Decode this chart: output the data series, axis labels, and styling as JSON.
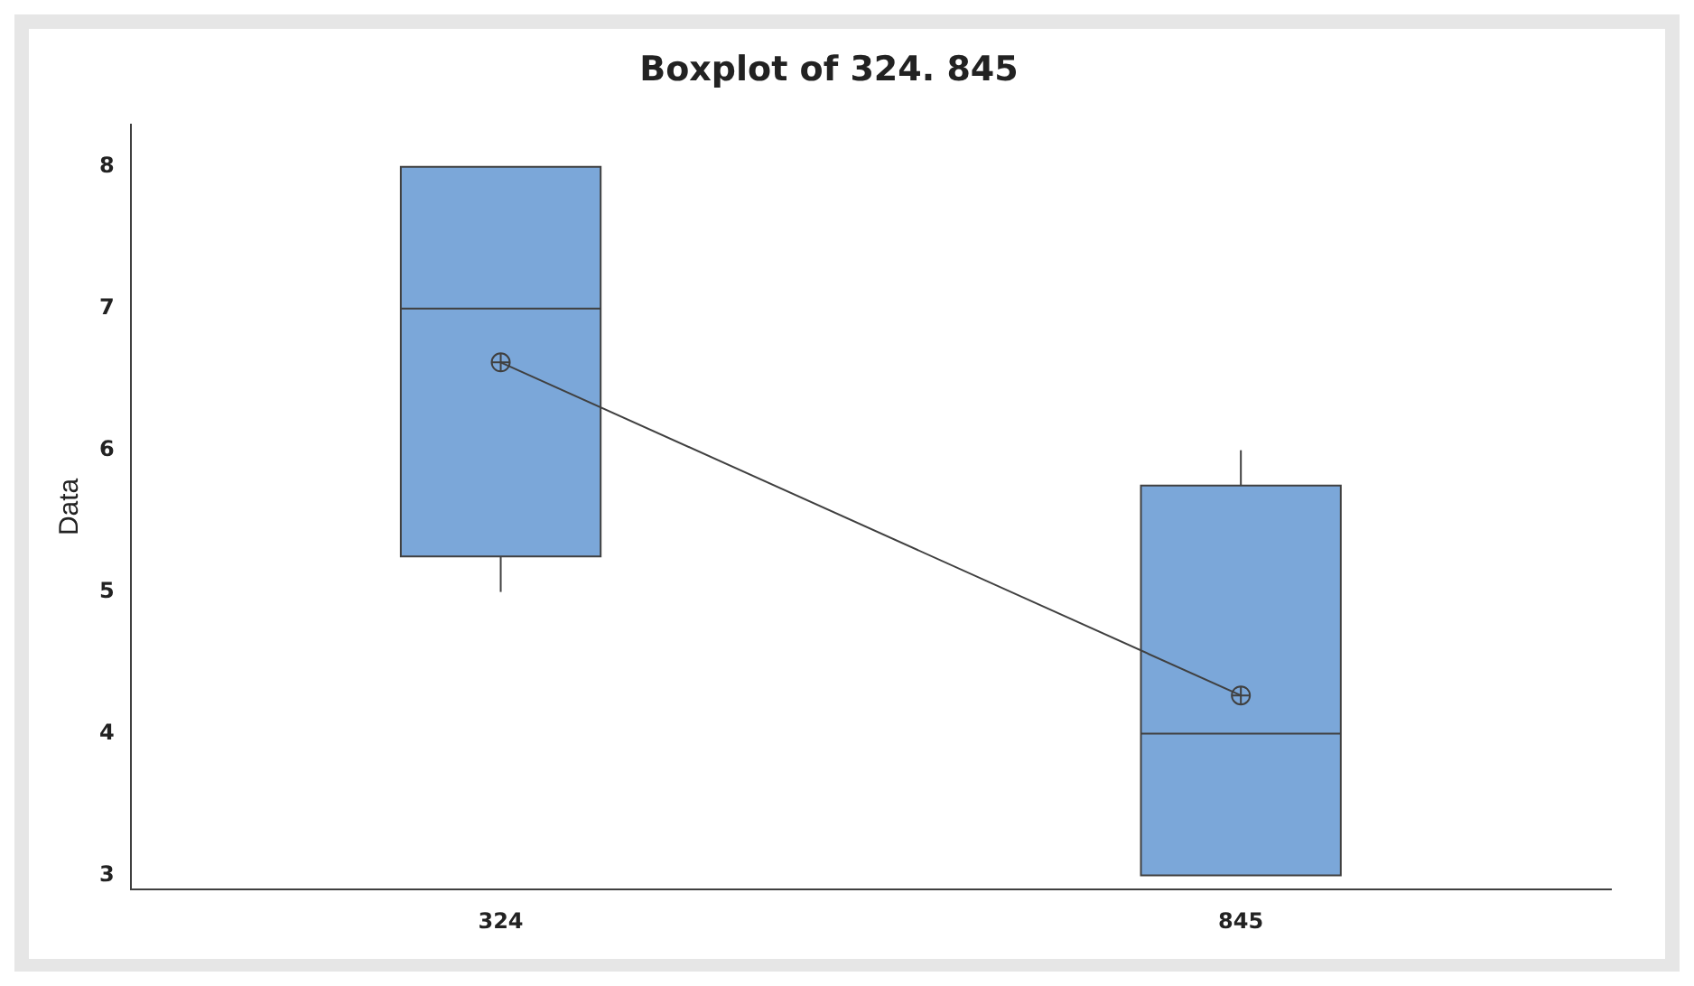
{
  "chart_data": {
    "type": "box",
    "title": "Boxplot of 324. 845",
    "ylabel": "Data",
    "categories": [
      "324",
      "845"
    ],
    "color": "#7ba7d9",
    "boxes": [
      {
        "low": 5,
        "q1": 5.25,
        "median": 7,
        "q3": 8,
        "high": 8,
        "mean": 6.62
      },
      {
        "low": 3,
        "q1": 3,
        "median": 4,
        "q3": 5.75,
        "high": 6,
        "mean": 4.27
      }
    ],
    "series": [
      {
        "type": "line",
        "color": "#404040",
        "values": [
          6.62,
          4.27
        ]
      }
    ],
    "ylim": [
      2.9,
      8.3
    ],
    "yticks": [
      3,
      4,
      5,
      6,
      7,
      8
    ],
    "grid": false,
    "legend": false
  }
}
